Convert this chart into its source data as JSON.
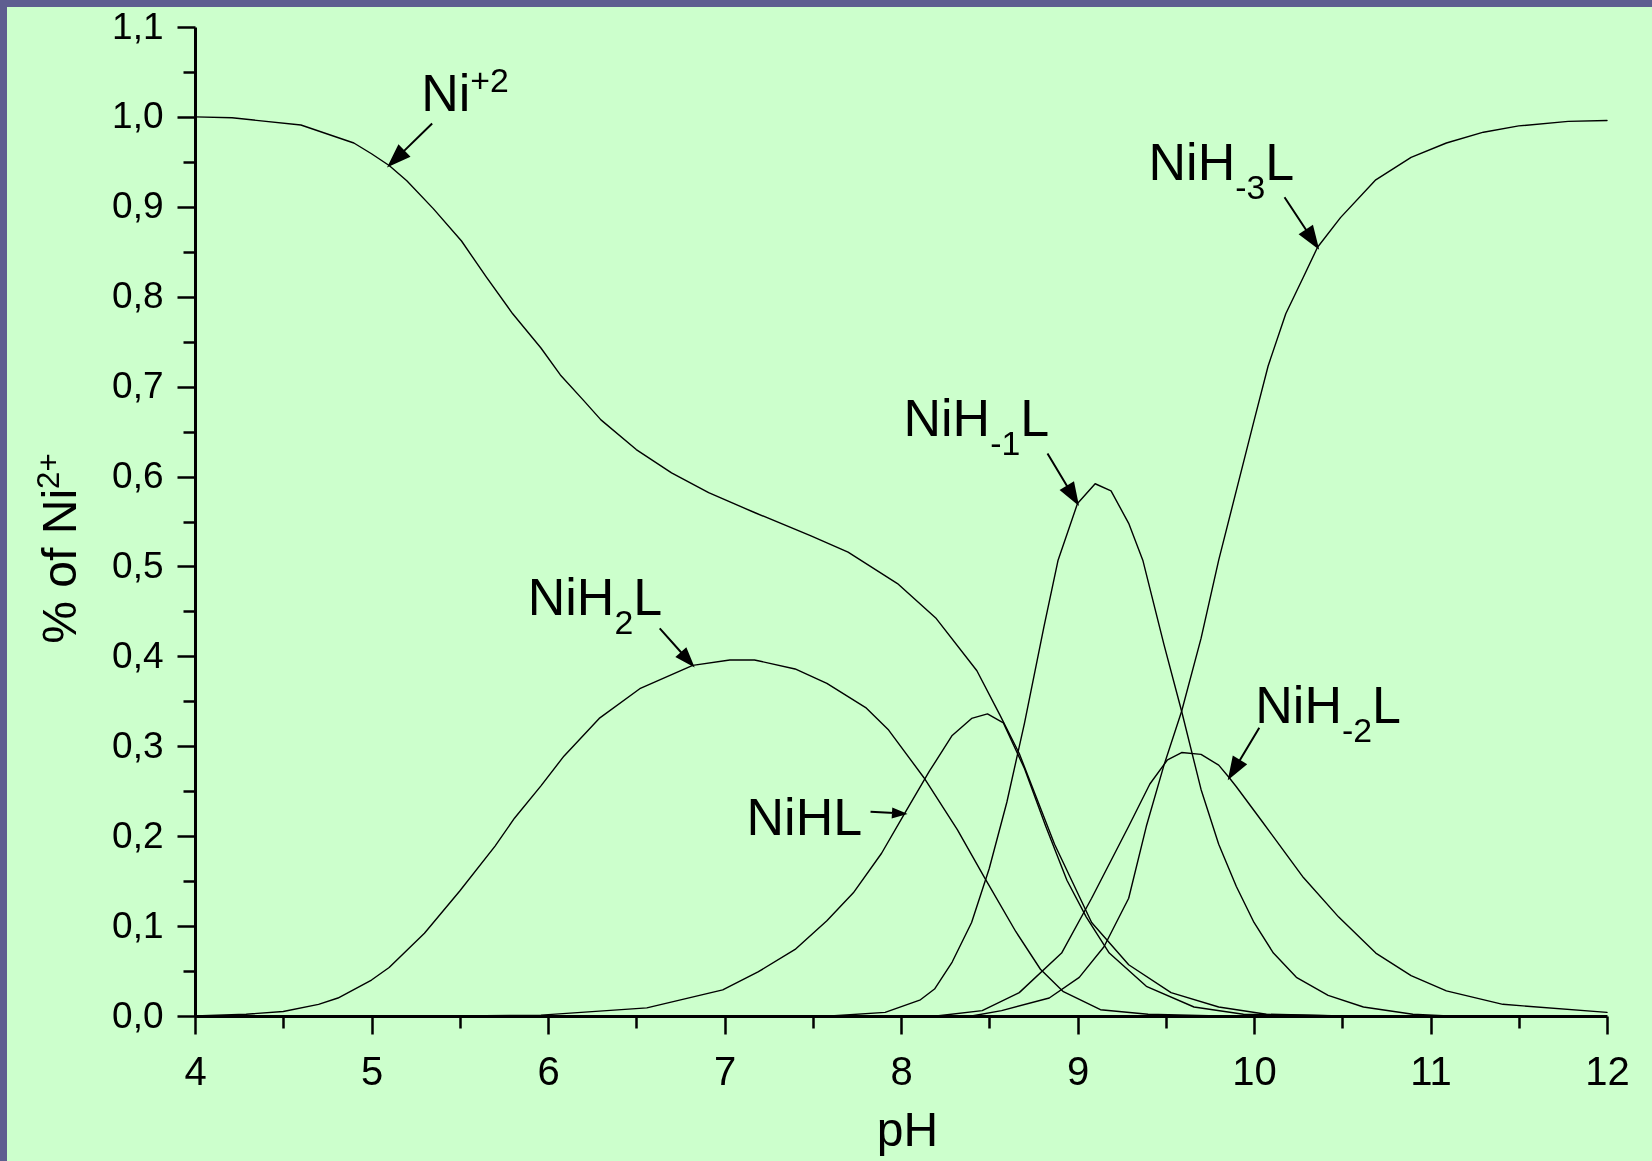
{
  "chart_data": {
    "type": "line",
    "xlabel": "pH",
    "ylabel": "% of Ni$^{2+}$",
    "line_style": "solid",
    "xlim": [
      4,
      12
    ],
    "xticks": [
      4,
      {
        "value": 4.5,
        "label": null
      },
      5,
      {
        "value": 5.5,
        "label": null
      },
      6,
      {
        "value": 6.5,
        "label": null
      },
      7,
      {
        "value": 7.5,
        "label": null
      },
      8,
      {
        "value": 8.5,
        "label": null
      },
      9,
      {
        "value": 9.5,
        "label": null
      },
      10,
      {
        "value": 10.5,
        "label": null
      },
      11,
      {
        "value": 11.5,
        "label": null
      },
      12
    ],
    "ylim": [
      0,
      1.1
    ],
    "yticks": [
      {
        "value": 0,
        "label": "0,0"
      },
      {
        "value": 0.05,
        "label": null
      },
      {
        "value": 0.1,
        "label": "0,1"
      },
      {
        "value": 0.15,
        "label": null
      },
      {
        "value": 0.2,
        "label": "0,2"
      },
      {
        "value": 0.25,
        "label": null
      },
      {
        "value": 0.3,
        "label": "0,3"
      },
      {
        "value": 0.35,
        "label": null
      },
      {
        "value": 0.4,
        "label": "0,4"
      },
      {
        "value": 0.45,
        "label": null
      },
      {
        "value": 0.5,
        "label": "0,5"
      },
      {
        "value": 0.55,
        "label": null
      },
      {
        "value": 0.6,
        "label": "0,6"
      },
      {
        "value": 0.65,
        "label": null
      },
      {
        "value": 0.7,
        "label": "0,7"
      },
      {
        "value": 0.75,
        "label": null
      },
      {
        "value": 0.8,
        "label": "0,8"
      },
      {
        "value": 0.85,
        "label": null
      },
      {
        "value": 0.9,
        "label": "0,9"
      },
      {
        "value": 0.95,
        "label": null
      },
      {
        "value": 1.0,
        "label": "1,0"
      },
      {
        "value": 1.05,
        "label": null
      },
      {
        "value": 1.1,
        "label": "1,1"
      }
    ],
    "series": [
      {
        "name": "Ni$^{+2}$",
        "color": "#000000",
        "x": [
          4,
          4.21,
          4.6,
          4.9,
          5,
          5.1,
          5.2,
          5.35,
          5.51,
          5.65,
          5.8,
          5.96,
          6.07,
          6.2,
          6.3,
          6.5,
          6.7,
          6.91,
          7.17,
          7.49,
          7.7,
          7.98,
          8.2,
          8.43,
          8.56,
          8.67,
          8.87,
          9.08,
          9.29,
          9.53,
          9.8,
          10.07,
          10.5
        ],
        "values": [
          1,
          0.999,
          0.991,
          0.971,
          0.959,
          0.946,
          0.929,
          0.898,
          0.862,
          0.822,
          0.781,
          0.743,
          0.713,
          0.685,
          0.663,
          0.63,
          0.604,
          0.582,
          0.56,
          0.534,
          0.516,
          0.481,
          0.442,
          0.384,
          0.335,
          0.292,
          0.191,
          0.104,
          0.057,
          0.026,
          0.01,
          0.002,
          0
        ]
      },
      {
        "name": "NiH$_{2}$L",
        "color": "#000000",
        "x": [
          4,
          4.29,
          4.5,
          4.7,
          4.81,
          5,
          5.1,
          5.3,
          5.5,
          5.7,
          5.81,
          5.96,
          6.09,
          6.29,
          6.52,
          6.82,
          7.03,
          7.17,
          7.4,
          7.58,
          7.8,
          7.93,
          8.13,
          8.32,
          8.47,
          8.65,
          8.79,
          8.92,
          9.13,
          9.4,
          9.8
        ],
        "values": [
          0,
          0.002,
          0.005,
          0.013,
          0.02,
          0.04,
          0.054,
          0.092,
          0.139,
          0.189,
          0.22,
          0.256,
          0.289,
          0.331,
          0.364,
          0.39,
          0.396,
          0.396,
          0.386,
          0.37,
          0.343,
          0.318,
          0.265,
          0.207,
          0.155,
          0.094,
          0.052,
          0.027,
          0.007,
          0.002,
          0
        ]
      },
      {
        "name": "NiHL",
        "color": "#000000",
        "x": [
          5.5,
          5.96,
          6.56,
          6.99,
          7.19,
          7.4,
          7.58,
          7.73,
          7.89,
          8.02,
          8.16,
          8.29,
          8.4,
          8.49,
          8.58,
          8.7,
          8.82,
          8.94,
          9.05,
          9.18,
          9.39,
          9.66,
          9.94,
          10.5
        ],
        "values": [
          0,
          0.001,
          0.009,
          0.029,
          0.049,
          0.074,
          0.106,
          0.137,
          0.181,
          0.225,
          0.272,
          0.312,
          0.331,
          0.336,
          0.326,
          0.275,
          0.211,
          0.151,
          0.11,
          0.07,
          0.033,
          0.01,
          0.002,
          0
        ]
      },
      {
        "name": "NiH$_{-1}$L",
        "color": "#000000",
        "x": [
          7.6,
          7.91,
          8.11,
          8.19,
          8.29,
          8.4,
          8.5,
          8.6,
          8.7,
          8.81,
          8.89,
          9,
          9.1,
          9.19,
          9.29,
          9.37,
          9.49,
          9.59,
          9.7,
          9.8,
          9.9,
          10,
          10.11,
          10.24,
          10.42,
          10.62,
          10.9,
          11.1
        ],
        "values": [
          0,
          0.004,
          0.018,
          0.03,
          0.06,
          0.104,
          0.164,
          0.238,
          0.326,
          0.433,
          0.507,
          0.57,
          0.592,
          0.584,
          0.548,
          0.507,
          0.413,
          0.339,
          0.252,
          0.191,
          0.144,
          0.104,
          0.07,
          0.043,
          0.023,
          0.01,
          0.002,
          0
        ]
      },
      {
        "name": "NiH$_{-2}$L",
        "color": "#000000",
        "x": [
          8.2,
          8.46,
          8.67,
          8.91,
          9.08,
          9.29,
          9.41,
          9.51,
          9.59,
          9.7,
          9.8,
          9.86,
          9.9,
          10.04,
          10.28,
          10.48,
          10.69,
          10.89,
          11.09,
          11.41,
          12
        ],
        "values": [
          0,
          0.006,
          0.026,
          0.07,
          0.131,
          0.211,
          0.258,
          0.285,
          0.293,
          0.291,
          0.279,
          0.265,
          0.255,
          0.218,
          0.154,
          0.11,
          0.07,
          0.045,
          0.028,
          0.013,
          0.004
        ]
      },
      {
        "name": "NiH$_{-3}$L",
        "color": "#000000",
        "x": [
          8.4,
          8.57,
          8.84,
          9.01,
          9.15,
          9.29,
          9.39,
          9.49,
          9.59,
          9.7,
          9.8,
          10,
          10.08,
          10.18,
          10.28,
          10.36,
          10.49,
          10.69,
          10.89,
          11.09,
          11.3,
          11.5,
          11.78,
          12
        ],
        "values": [
          0,
          0.006,
          0.02,
          0.043,
          0.077,
          0.131,
          0.211,
          0.279,
          0.339,
          0.42,
          0.507,
          0.662,
          0.723,
          0.781,
          0.822,
          0.855,
          0.888,
          0.93,
          0.955,
          0.971,
          0.983,
          0.99,
          0.995,
          0.996
        ]
      }
    ]
  }
}
